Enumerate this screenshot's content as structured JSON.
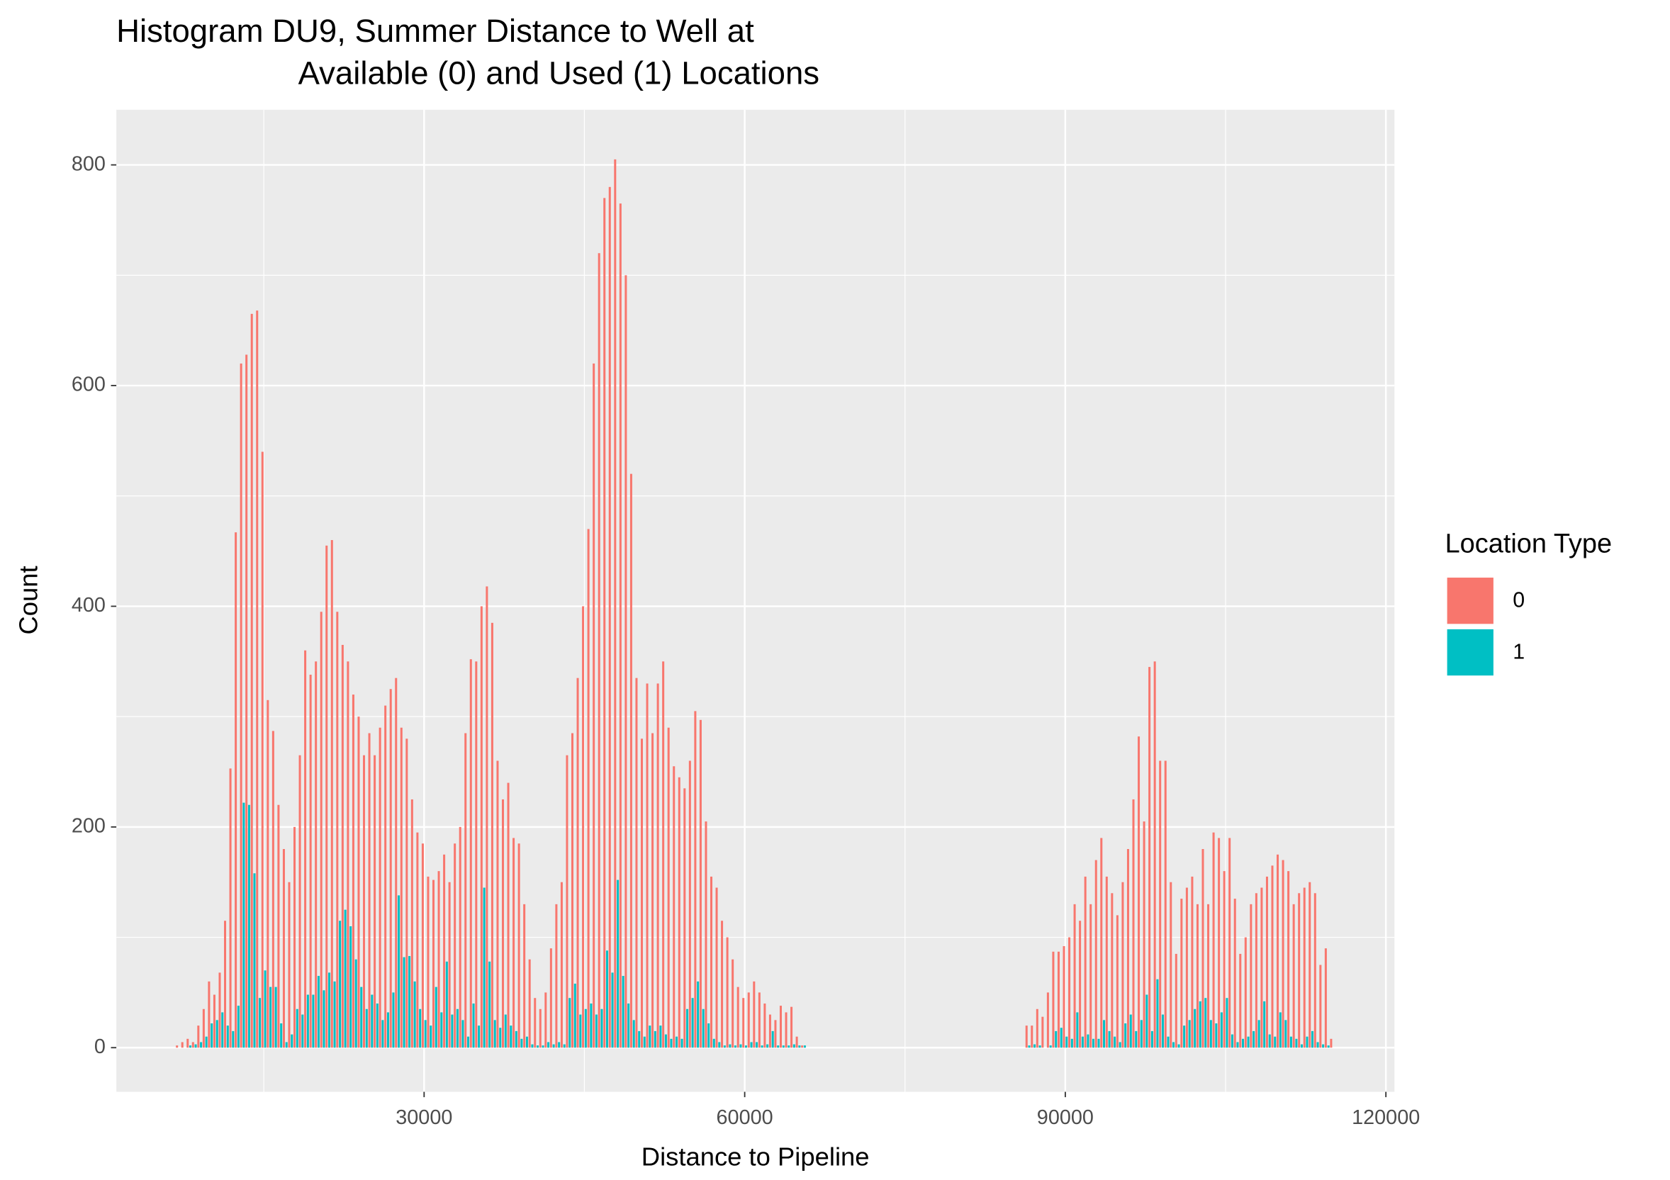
{
  "chart_data": {
    "type": "histogram",
    "title": [
      "Histogram DU9, Summer Distance to Well at",
      "Available (0) and Used (1) Locations"
    ],
    "x_label": "Distance to Pipeline",
    "y_label": "Count",
    "legend_title": "Location Type",
    "legend_position": "right",
    "grid": true,
    "background": "#ebebeb",
    "xlim": [
      1200,
      120800
    ],
    "ylim": [
      -40,
      850
    ],
    "xticks": [
      30000,
      60000,
      90000,
      120000
    ],
    "yticks": [
      0,
      200,
      400,
      600,
      800
    ],
    "x_minor_ticks": [
      15000,
      45000,
      75000,
      105000
    ],
    "y_minor_ticks": [
      100,
      300,
      500,
      700
    ],
    "bins": [
      6750,
      7250,
      7750,
      8250,
      8750,
      9250,
      9750,
      10250,
      10750,
      11250,
      11750,
      12250,
      12750,
      13250,
      13750,
      14250,
      14750,
      15250,
      15750,
      16250,
      16750,
      17250,
      17750,
      18250,
      18750,
      19250,
      19750,
      20250,
      20750,
      21250,
      21750,
      22250,
      22750,
      23250,
      23750,
      24250,
      24750,
      25250,
      25750,
      26250,
      26750,
      27250,
      27750,
      28250,
      28750,
      29250,
      29750,
      30250,
      30750,
      31250,
      31750,
      32250,
      32750,
      33250,
      33750,
      34250,
      34750,
      35250,
      35750,
      36250,
      36750,
      37250,
      37750,
      38250,
      38750,
      39250,
      39750,
      40250,
      40750,
      41250,
      41750,
      42250,
      42750,
      43250,
      43750,
      44250,
      44750,
      45250,
      45750,
      46250,
      46750,
      47250,
      47750,
      48250,
      48750,
      49250,
      49750,
      50250,
      50750,
      51250,
      51750,
      52250,
      52750,
      53250,
      53750,
      54250,
      54750,
      55250,
      55750,
      56250,
      56750,
      57250,
      57750,
      58250,
      58750,
      59250,
      59750,
      60250,
      60750,
      61250,
      61750,
      62250,
      62750,
      63250,
      63750,
      64250,
      64750,
      65250,
      65750,
      66250,
      66750,
      67250,
      67750,
      68250,
      68750,
      69250,
      69750,
      70250,
      70750,
      71250,
      71750,
      72250,
      72750,
      73250,
      73750,
      74250,
      74750,
      75250,
      75750,
      76250,
      76750,
      77250,
      77750,
      78250,
      78750,
      79250,
      79750,
      80250,
      80750,
      81250,
      81750,
      82250,
      82750,
      83250,
      83750,
      84250,
      84750,
      85250,
      85750,
      86250,
      86750,
      87250,
      87750,
      88250,
      88750,
      89250,
      89750,
      90250,
      90750,
      91250,
      91750,
      92250,
      92750,
      93250,
      93750,
      94250,
      94750,
      95250,
      95750,
      96250,
      96750,
      97250,
      97750,
      98250,
      98750,
      99250,
      99750,
      100250,
      100750,
      101250,
      101750,
      102250,
      102750,
      103250,
      103750,
      104250,
      104750,
      105250,
      105750,
      106250,
      106750,
      107250,
      107750,
      108250,
      108750,
      109250,
      109750,
      110250,
      110750,
      111250,
      111750,
      112250,
      112750,
      113250,
      113750,
      114250,
      114750,
      115250
    ],
    "series": [
      {
        "name": "0",
        "color": "#f8766d",
        "values": [
          2,
          5,
          8,
          5,
          20,
          35,
          60,
          48,
          68,
          115,
          253,
          467,
          620,
          628,
          665,
          668,
          540,
          315,
          287,
          220,
          180,
          150,
          200,
          265,
          360,
          338,
          350,
          395,
          455,
          460,
          395,
          365,
          350,
          320,
          300,
          265,
          285,
          265,
          290,
          310,
          325,
          335,
          290,
          280,
          225,
          195,
          185,
          155,
          152,
          160,
          175,
          150,
          185,
          200,
          285,
          352,
          350,
          400,
          418,
          385,
          260,
          225,
          240,
          190,
          185,
          130,
          80,
          45,
          35,
          50,
          90,
          130,
          150,
          265,
          285,
          335,
          400,
          470,
          620,
          720,
          770,
          780,
          805,
          765,
          700,
          520,
          335,
          280,
          330,
          285,
          330,
          350,
          290,
          255,
          245,
          235,
          260,
          305,
          297,
          205,
          155,
          145,
          115,
          100,
          80,
          55,
          45,
          50,
          60,
          50,
          40,
          30,
          25,
          38,
          32,
          37,
          10,
          2,
          0,
          0,
          0,
          0,
          0,
          0,
          0,
          0,
          0,
          0,
          0,
          0,
          0,
          0,
          0,
          0,
          0,
          0,
          0,
          0,
          0,
          0,
          0,
          0,
          0,
          0,
          0,
          0,
          0,
          0,
          0,
          0,
          0,
          0,
          0,
          0,
          0,
          0,
          0,
          0,
          0,
          20,
          20,
          35,
          28,
          50,
          87,
          87,
          92,
          100,
          130,
          115,
          155,
          130,
          170,
          190,
          155,
          140,
          120,
          150,
          180,
          225,
          282,
          205,
          345,
          350,
          260,
          260,
          150,
          85,
          135,
          145,
          155,
          130,
          180,
          130,
          195,
          190,
          160,
          190,
          135,
          85,
          100,
          130,
          140,
          145,
          155,
          165,
          175,
          170,
          160,
          130,
          140,
          145,
          150,
          140,
          75,
          90,
          8
        ]
      },
      {
        "name": "1",
        "color": "#00bfc4",
        "values": [
          0,
          0,
          2,
          3,
          5,
          10,
          22,
          25,
          32,
          20,
          15,
          38,
          222,
          220,
          158,
          45,
          70,
          55,
          55,
          22,
          5,
          12,
          35,
          30,
          48,
          48,
          65,
          52,
          68,
          60,
          115,
          125,
          110,
          80,
          55,
          35,
          48,
          40,
          25,
          32,
          50,
          138,
          82,
          83,
          60,
          35,
          25,
          20,
          55,
          32,
          78,
          30,
          35,
          25,
          10,
          40,
          20,
          145,
          78,
          25,
          18,
          30,
          20,
          15,
          8,
          10,
          3,
          2,
          2,
          5,
          3,
          5,
          3,
          45,
          58,
          30,
          35,
          40,
          30,
          35,
          88,
          68,
          152,
          65,
          40,
          25,
          15,
          10,
          20,
          15,
          20,
          12,
          8,
          10,
          8,
          35,
          45,
          60,
          35,
          22,
          8,
          5,
          2,
          3,
          2,
          3,
          2,
          5,
          5,
          2,
          3,
          15,
          2,
          2,
          2,
          3,
          2,
          2,
          0,
          0,
          0,
          0,
          0,
          0,
          0,
          0,
          0,
          0,
          0,
          0,
          0,
          0,
          0,
          0,
          0,
          0,
          0,
          0,
          0,
          0,
          0,
          0,
          0,
          0,
          0,
          0,
          0,
          0,
          0,
          0,
          0,
          0,
          0,
          0,
          0,
          0,
          0,
          0,
          0,
          2,
          3,
          2,
          0,
          2,
          15,
          18,
          10,
          8,
          32,
          10,
          12,
          8,
          8,
          25,
          15,
          10,
          5,
          22,
          30,
          15,
          25,
          48,
          15,
          62,
          30,
          10,
          5,
          3,
          20,
          25,
          35,
          42,
          45,
          25,
          22,
          32,
          45,
          12,
          5,
          8,
          10,
          15,
          25,
          42,
          12,
          10,
          32,
          25,
          10,
          8,
          3,
          10,
          15,
          5,
          3,
          2,
          0
        ]
      }
    ]
  }
}
